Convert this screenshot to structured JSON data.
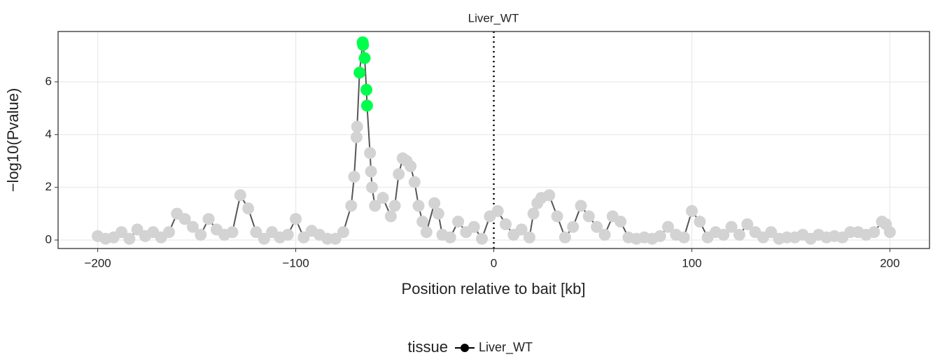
{
  "chart_data": {
    "type": "line",
    "title": "Liver_WT",
    "x_label": "Position relative to bait [kb]",
    "y_label": "−log10(Pvalue)",
    "legend_title": "tissue",
    "legend_position": "bottom",
    "grid": true,
    "xlim": [
      -220,
      220
    ],
    "ylim": [
      -0.32,
      7.91
    ],
    "xticks": [
      {
        "value": -200,
        "label": "−200"
      },
      {
        "value": -100,
        "label": "−100"
      },
      0,
      100,
      200
    ],
    "yticks": [
      0,
      2,
      4,
      6
    ],
    "vline": 0,
    "x": [
      -200,
      -196,
      -192,
      -188,
      -184,
      -180,
      -176,
      -172,
      -168,
      -164,
      -160,
      -156,
      -152,
      -148,
      -144,
      -140,
      -136,
      -132,
      -128,
      -124,
      -120,
      -116,
      -112,
      -108,
      -104,
      -100,
      -96,
      -92,
      -88,
      -84,
      -80,
      -76,
      -72,
      -70.5,
      -69.3,
      -69,
      -67.8,
      -66.2,
      -66,
      -65.2,
      -64.3,
      -64,
      -62.5,
      -62,
      -61.5,
      -60,
      -56,
      -52,
      -50,
      -48,
      -46,
      -44,
      -42,
      -40,
      -38,
      -36,
      -34,
      -30,
      -28,
      -26,
      -22,
      -18,
      -14,
      -10,
      -6,
      -2,
      2,
      6,
      10,
      14,
      18,
      20,
      22,
      24,
      28,
      32,
      36,
      40,
      44,
      48,
      52,
      56,
      60,
      64,
      68,
      72,
      76,
      80,
      84,
      88,
      92,
      96,
      100,
      104,
      108,
      112,
      116,
      120,
      124,
      128,
      132,
      136,
      140,
      144,
      148,
      152,
      156,
      160,
      164,
      168,
      172,
      176,
      180,
      184,
      188,
      192,
      196,
      198,
      200
    ],
    "series": [
      {
        "name": "Liver_WT",
        "color": "#000000",
        "line_color": "#555555",
        "values": [
          0.15,
          0.05,
          0.1,
          0.3,
          0.05,
          0.4,
          0.15,
          0.3,
          0.1,
          0.3,
          1.0,
          0.8,
          0.5,
          0.2,
          0.8,
          0.4,
          0.2,
          0.3,
          1.7,
          1.2,
          0.3,
          0.05,
          0.3,
          0.1,
          0.2,
          0.8,
          0.1,
          0.35,
          0.2,
          0.05,
          0.05,
          0.3,
          1.3,
          2.4,
          3.9,
          4.3,
          6.35,
          7.5,
          7.4,
          6.9,
          5.7,
          5.1,
          3.3,
          2.6,
          2.0,
          1.3,
          1.6,
          0.9,
          1.3,
          2.5,
          3.1,
          3.0,
          2.8,
          2.2,
          1.3,
          0.7,
          0.3,
          1.4,
          1.0,
          0.2,
          0.1,
          0.7,
          0.3,
          0.5,
          0.05,
          0.9,
          1.1,
          0.6,
          0.2,
          0.4,
          0.1,
          1.0,
          1.4,
          1.6,
          1.7,
          0.9,
          0.1,
          0.5,
          1.3,
          0.9,
          0.5,
          0.2,
          0.9,
          0.7,
          0.1,
          0.05,
          0.1,
          0.05,
          0.15,
          0.5,
          0.2,
          0.1,
          1.1,
          0.7,
          0.1,
          0.3,
          0.2,
          0.5,
          0.2,
          0.6,
          0.3,
          0.1,
          0.3,
          0.05,
          0.1,
          0.1,
          0.2,
          0.05,
          0.2,
          0.1,
          0.15,
          0.1,
          0.3,
          0.3,
          0.2,
          0.3,
          0.7,
          0.6,
          0.3
        ],
        "point_colors": [
          "lightgrey",
          "lightgrey",
          "lightgrey",
          "lightgrey",
          "lightgrey",
          "lightgrey",
          "lightgrey",
          "lightgrey",
          "lightgrey",
          "lightgrey",
          "lightgrey",
          "lightgrey",
          "lightgrey",
          "lightgrey",
          "lightgrey",
          "lightgrey",
          "lightgrey",
          "lightgrey",
          "lightgrey",
          "lightgrey",
          "lightgrey",
          "lightgrey",
          "lightgrey",
          "lightgrey",
          "lightgrey",
          "lightgrey",
          "lightgrey",
          "lightgrey",
          "lightgrey",
          "lightgrey",
          "lightgrey",
          "lightgrey",
          "lightgrey",
          "lightgrey",
          "lightgrey",
          "lightgrey",
          "#00ff4c",
          "#00ff4c",
          "#00ff4c",
          "#00ff4c",
          "#00ff4c",
          "#00ff4c",
          "lightgrey",
          "lightgrey",
          "lightgrey",
          "lightgrey",
          "lightgrey",
          "lightgrey",
          "lightgrey",
          "lightgrey",
          "lightgrey",
          "lightgrey",
          "lightgrey",
          "lightgrey",
          "lightgrey",
          "lightgrey",
          "lightgrey",
          "lightgrey",
          "lightgrey",
          "lightgrey",
          "lightgrey",
          "lightgrey",
          "lightgrey",
          "lightgrey",
          "lightgrey",
          "lightgrey",
          "lightgrey",
          "lightgrey",
          "lightgrey",
          "lightgrey",
          "lightgrey",
          "lightgrey",
          "lightgrey",
          "lightgrey",
          "lightgrey",
          "lightgrey",
          "lightgrey",
          "lightgrey",
          "lightgrey",
          "lightgrey",
          "lightgrey",
          "lightgrey",
          "lightgrey",
          "lightgrey",
          "lightgrey",
          "lightgrey",
          "lightgrey",
          "lightgrey",
          "lightgrey",
          "lightgrey",
          "lightgrey",
          "lightgrey",
          "lightgrey",
          "lightgrey",
          "lightgrey",
          "lightgrey",
          "lightgrey",
          "lightgrey",
          "lightgrey",
          "lightgrey",
          "lightgrey",
          "lightgrey",
          "lightgrey",
          "lightgrey",
          "lightgrey",
          "lightgrey",
          "lightgrey",
          "lightgrey",
          "lightgrey",
          "lightgrey",
          "lightgrey",
          "lightgrey",
          "lightgrey",
          "lightgrey",
          "lightgrey",
          "lightgrey",
          "lightgrey",
          "lightgrey",
          "lightgrey"
        ]
      }
    ]
  }
}
